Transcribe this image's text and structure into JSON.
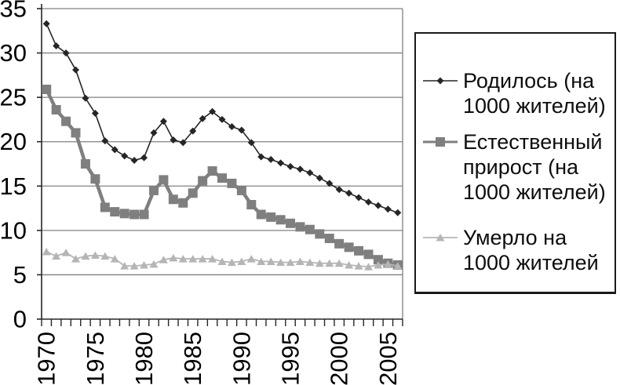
{
  "chart_data": {
    "type": "line",
    "x": [
      1970,
      1971,
      1972,
      1973,
      1974,
      1975,
      1976,
      1977,
      1978,
      1979,
      1980,
      1981,
      1982,
      1983,
      1984,
      1985,
      1986,
      1987,
      1988,
      1989,
      1990,
      1991,
      1992,
      1993,
      1994,
      1995,
      1996,
      1997,
      1998,
      1999,
      2000,
      2001,
      2002,
      2003,
      2004,
      2005,
      2006
    ],
    "x_tick_labels": [
      "1970",
      "1975",
      "1980",
      "1985",
      "1990",
      "1995",
      "2000",
      "2005"
    ],
    "y_tick_labels": [
      "0",
      "5",
      "10",
      "15",
      "20",
      "25",
      "30",
      "35"
    ],
    "ylim": [
      0,
      35
    ],
    "ytick_step": 5,
    "grid": true,
    "legend_position": "right",
    "title": "",
    "xlabel": "",
    "ylabel": "",
    "series": [
      {
        "name": "Родилось (на 1000 жителей)",
        "marker": "diamond",
        "color": "#262626",
        "line_width": 1.6,
        "marker_size": 9,
        "values": [
          33.3,
          30.8,
          30.0,
          28.1,
          24.9,
          23.2,
          20.1,
          19.1,
          18.4,
          17.9,
          18.2,
          21.0,
          22.3,
          20.2,
          19.9,
          21.2,
          22.6,
          23.4,
          22.5,
          21.7,
          21.3,
          19.9,
          18.3,
          18.0,
          17.6,
          17.2,
          16.9,
          16.5,
          15.9,
          15.3,
          14.6,
          14.2,
          13.7,
          13.2,
          12.8,
          12.4,
          12.0
        ]
      },
      {
        "name": "Естественный прирост (на 1000 жителей)",
        "marker": "square",
        "color": "#7f7f7f",
        "line_width": 4.5,
        "marker_size": 12,
        "values": [
          25.9,
          23.6,
          22.3,
          21.0,
          17.5,
          15.8,
          12.6,
          12.1,
          11.9,
          11.8,
          11.8,
          14.5,
          15.7,
          13.5,
          13.1,
          14.2,
          15.6,
          16.7,
          15.9,
          15.3,
          14.5,
          12.9,
          11.8,
          11.5,
          11.2,
          10.8,
          10.4,
          10.1,
          9.6,
          9.1,
          8.5,
          8.1,
          7.7,
          7.3,
          6.7,
          6.3,
          6.1
        ]
      },
      {
        "name": "Умерло на 1000 жителей",
        "marker": "triangle",
        "color": "#b5b5b5",
        "line_width": 1.8,
        "marker_size": 11,
        "values": [
          7.6,
          7.1,
          7.5,
          6.8,
          7.1,
          7.2,
          7.1,
          6.8,
          6.0,
          6.0,
          6.1,
          6.2,
          6.7,
          6.9,
          6.8,
          6.8,
          6.8,
          6.8,
          6.5,
          6.4,
          6.5,
          6.8,
          6.5,
          6.5,
          6.4,
          6.4,
          6.5,
          6.4,
          6.3,
          6.3,
          6.3,
          6.1,
          6.0,
          5.9,
          6.1,
          6.2,
          6.0
        ]
      }
    ],
    "colors": {
      "gridline": "#808080",
      "axis": "#262626",
      "plot_background": "#ffffff"
    }
  }
}
